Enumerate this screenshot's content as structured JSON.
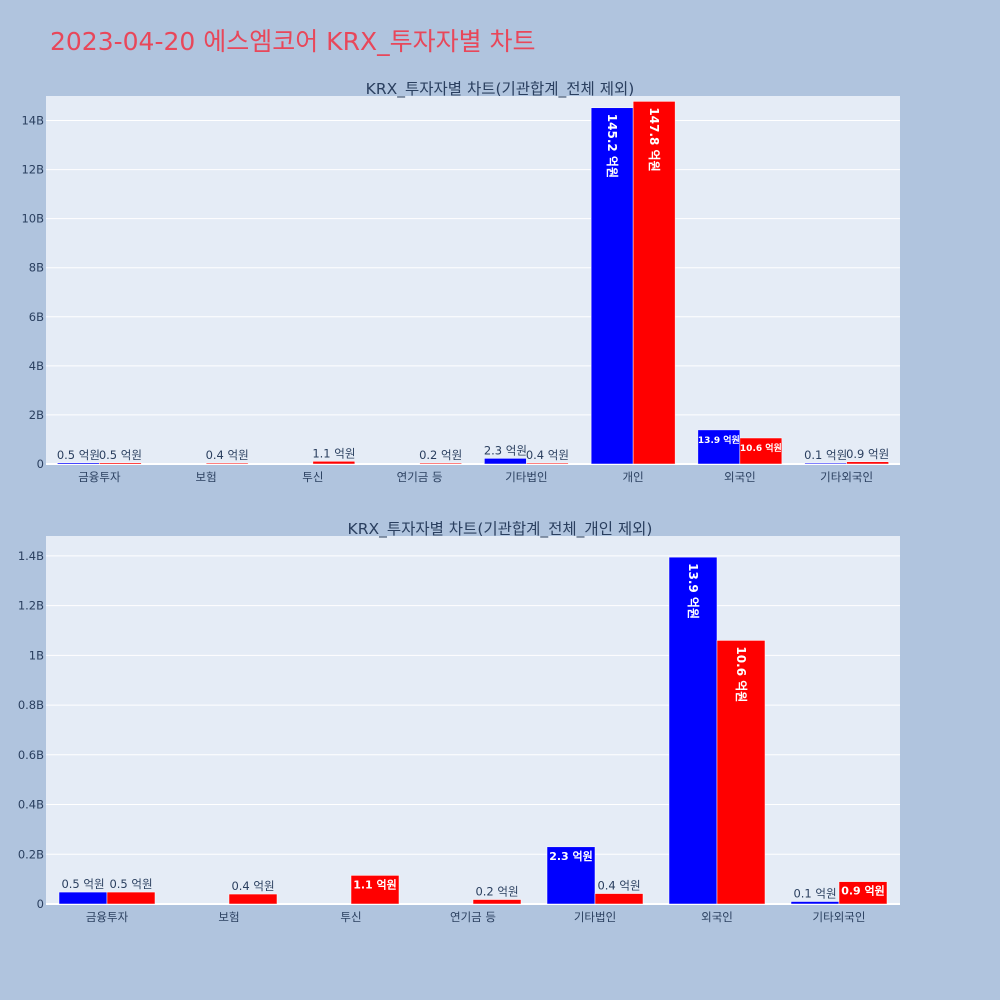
{
  "header": {
    "title": "2023-04-20 에스엠코어 KRX_투자자별 차트"
  },
  "colors": {
    "background": "#b0c4de",
    "plot_bg": "#e5ecf6",
    "title": "#e8475a",
    "buy": "#0000ff",
    "sell": "#ff0000",
    "text": "#2a3f5f",
    "grid": "#ffffff"
  },
  "chart_data": [
    {
      "type": "bar",
      "title": "KRX_투자자별 차트(기관합계_전체 제외)",
      "categories": [
        "금융투자",
        "보험",
        "투신",
        "연기금 등",
        "기타법인",
        "개인",
        "외국인",
        "기타외국인"
      ],
      "ylim": [
        0,
        15000000000
      ],
      "yticks": [
        0,
        2000000000,
        4000000000,
        6000000000,
        8000000000,
        10000000000,
        12000000000,
        14000000000
      ],
      "ytick_labels": [
        "0",
        "2B",
        "4B",
        "6B",
        "8B",
        "10B",
        "12B",
        "14B"
      ],
      "grid": true,
      "series": [
        {
          "color": "#0000ff",
          "values": [
            50000000,
            0,
            0,
            0,
            230000000,
            14520000000,
            1390000000,
            10000000
          ],
          "labels": [
            "0.5 억원",
            "",
            "",
            "",
            "2.3 억원",
            "145.2 억원",
            "13.9 억원",
            "0.1 억원"
          ]
        },
        {
          "color": "#ff0000",
          "values": [
            50000000,
            40000000,
            110000000,
            20000000,
            40000000,
            14780000000,
            1060000000,
            90000000
          ],
          "labels": [
            "0.5 억원",
            "0.4 억원",
            "1.1 억원",
            "0.2 억원",
            "0.4 억원",
            "147.8 억원",
            "10.6 억원",
            "0.9 억원"
          ]
        }
      ]
    },
    {
      "type": "bar",
      "title": "KRX_투자자별 차트(기관합계_전체_개인 제외)",
      "categories": [
        "금융투자",
        "보험",
        "투신",
        "연기금 등",
        "기타법인",
        "외국인",
        "기타외국인"
      ],
      "ylim": [
        0,
        1480000000
      ],
      "yticks": [
        0,
        200000000,
        400000000,
        600000000,
        800000000,
        1000000000,
        1200000000,
        1400000000
      ],
      "ytick_labels": [
        "0",
        "0.2B",
        "0.4B",
        "0.6B",
        "0.8B",
        "1B",
        "1.2B",
        "1.4B"
      ],
      "grid": true,
      "series": [
        {
          "color": "#0000ff",
          "values": [
            48000000,
            0,
            0,
            0,
            230000000,
            1395000000,
            10000000
          ],
          "labels": [
            "0.5 억원",
            "",
            "",
            "",
            "2.3 억원",
            "13.9 억원",
            "0.1 억원"
          ]
        },
        {
          "color": "#ff0000",
          "values": [
            48000000,
            40000000,
            115000000,
            18000000,
            42000000,
            1060000000,
            90000000
          ],
          "labels": [
            "0.5 억원",
            "0.4 억원",
            "1.1 억원",
            "0.2 억원",
            "0.4 억원",
            "10.6 억원",
            "0.9 억원"
          ]
        }
      ]
    }
  ]
}
